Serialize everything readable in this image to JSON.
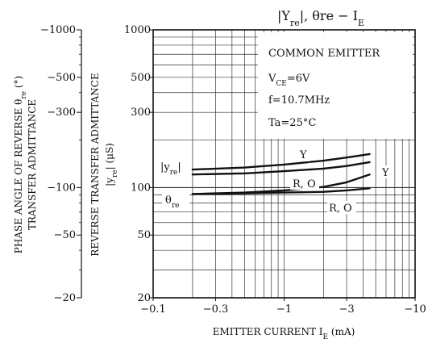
{
  "chart_data": {
    "type": "line",
    "title_parts": {
      "a": "|Y",
      "a_sub": "re",
      "b": "|, θre  −  I",
      "b_sub": "E"
    },
    "x_axis": {
      "label_main": "EMITTER    CURRENT   I",
      "label_sub": "E",
      "label_unit": " (mA)",
      "scale": "log",
      "range": [
        -0.1,
        -10
      ],
      "ticks": [
        {
          "v": 0.1,
          "label": "−0.1"
        },
        {
          "v": 0.3,
          "label": "−0.3"
        },
        {
          "v": 1,
          "label": "−1"
        },
        {
          "v": 3,
          "label": "−3"
        },
        {
          "v": 10,
          "label": "−10"
        }
      ]
    },
    "y_axis_main": {
      "scale": "log",
      "range": [
        20,
        1000
      ],
      "ticks": [
        {
          "v": 1000,
          "label": "1000"
        },
        {
          "v": 500,
          "label": "500"
        },
        {
          "v": 300,
          "label": "300"
        },
        {
          "v": 100,
          "label": "100"
        },
        {
          "v": 50,
          "label": "50"
        },
        {
          "v": 20,
          "label": "20"
        }
      ],
      "label_line1": "REVERSE TRANSFER ADMITTANCE",
      "label_line2_pre": "|y",
      "label_line2_sub": "re",
      "label_line2_post": "|  (μS)"
    },
    "y_axis_phase": {
      "scale": "log",
      "range": [
        -20,
        -1000
      ],
      "ticks": [
        {
          "v": 1000,
          "label": "−1000"
        },
        {
          "v": 500,
          "label": "−500"
        },
        {
          "v": 300,
          "label": "−300"
        },
        {
          "v": 100,
          "label": "−100"
        },
        {
          "v": 50,
          "label": "−50"
        },
        {
          "v": 20,
          "label": "−20"
        }
      ],
      "label_line1_pre": "PHASE ANGLE OF REVERSE  θ",
      "label_line1_sub": "re",
      "label_line1_post": "  (°)",
      "label_line2": "TRANSFER ADMITTANCE"
    },
    "conditions": {
      "line1": "COMMON EMITTER",
      "line2_pre": "V",
      "line2_sub": "CE",
      "line2_post": "=6V",
      "line3": "f=10.7MHz",
      "line4": "Ta=25°C"
    },
    "series": [
      {
        "name": "|yre| Y",
        "x": [
          -0.2,
          -0.5,
          -1,
          -2,
          -3,
          -4.5
        ],
        "y": [
          130,
          134,
          140,
          148,
          155,
          163
        ]
      },
      {
        "name": "|yre| R, O",
        "x": [
          -0.2,
          -0.5,
          -1,
          -2,
          -3,
          -4.5
        ],
        "y": [
          121,
          123,
          127,
          132,
          137,
          145
        ]
      },
      {
        "name": "θre Y",
        "x": [
          -0.2,
          -0.5,
          -1,
          -2,
          -3,
          -4.5
        ],
        "y": [
          -91,
          -93,
          -96,
          -101,
          -108,
          -121
        ]
      },
      {
        "name": "θre R, O",
        "x": [
          -0.2,
          -0.5,
          -1,
          -2,
          -3,
          -4.5
        ],
        "y": [
          -91,
          -92,
          -93,
          -94,
          -96,
          -99
        ]
      }
    ],
    "curve_labels": {
      "yre": "|y",
      "yre_sub": "re",
      "yre_end": "|",
      "theta": "θ",
      "theta_sub": "re",
      "Y_upper": "Y",
      "Y_lower": "Y",
      "RO_upper": "R, O",
      "RO_lower": "R, O"
    }
  }
}
